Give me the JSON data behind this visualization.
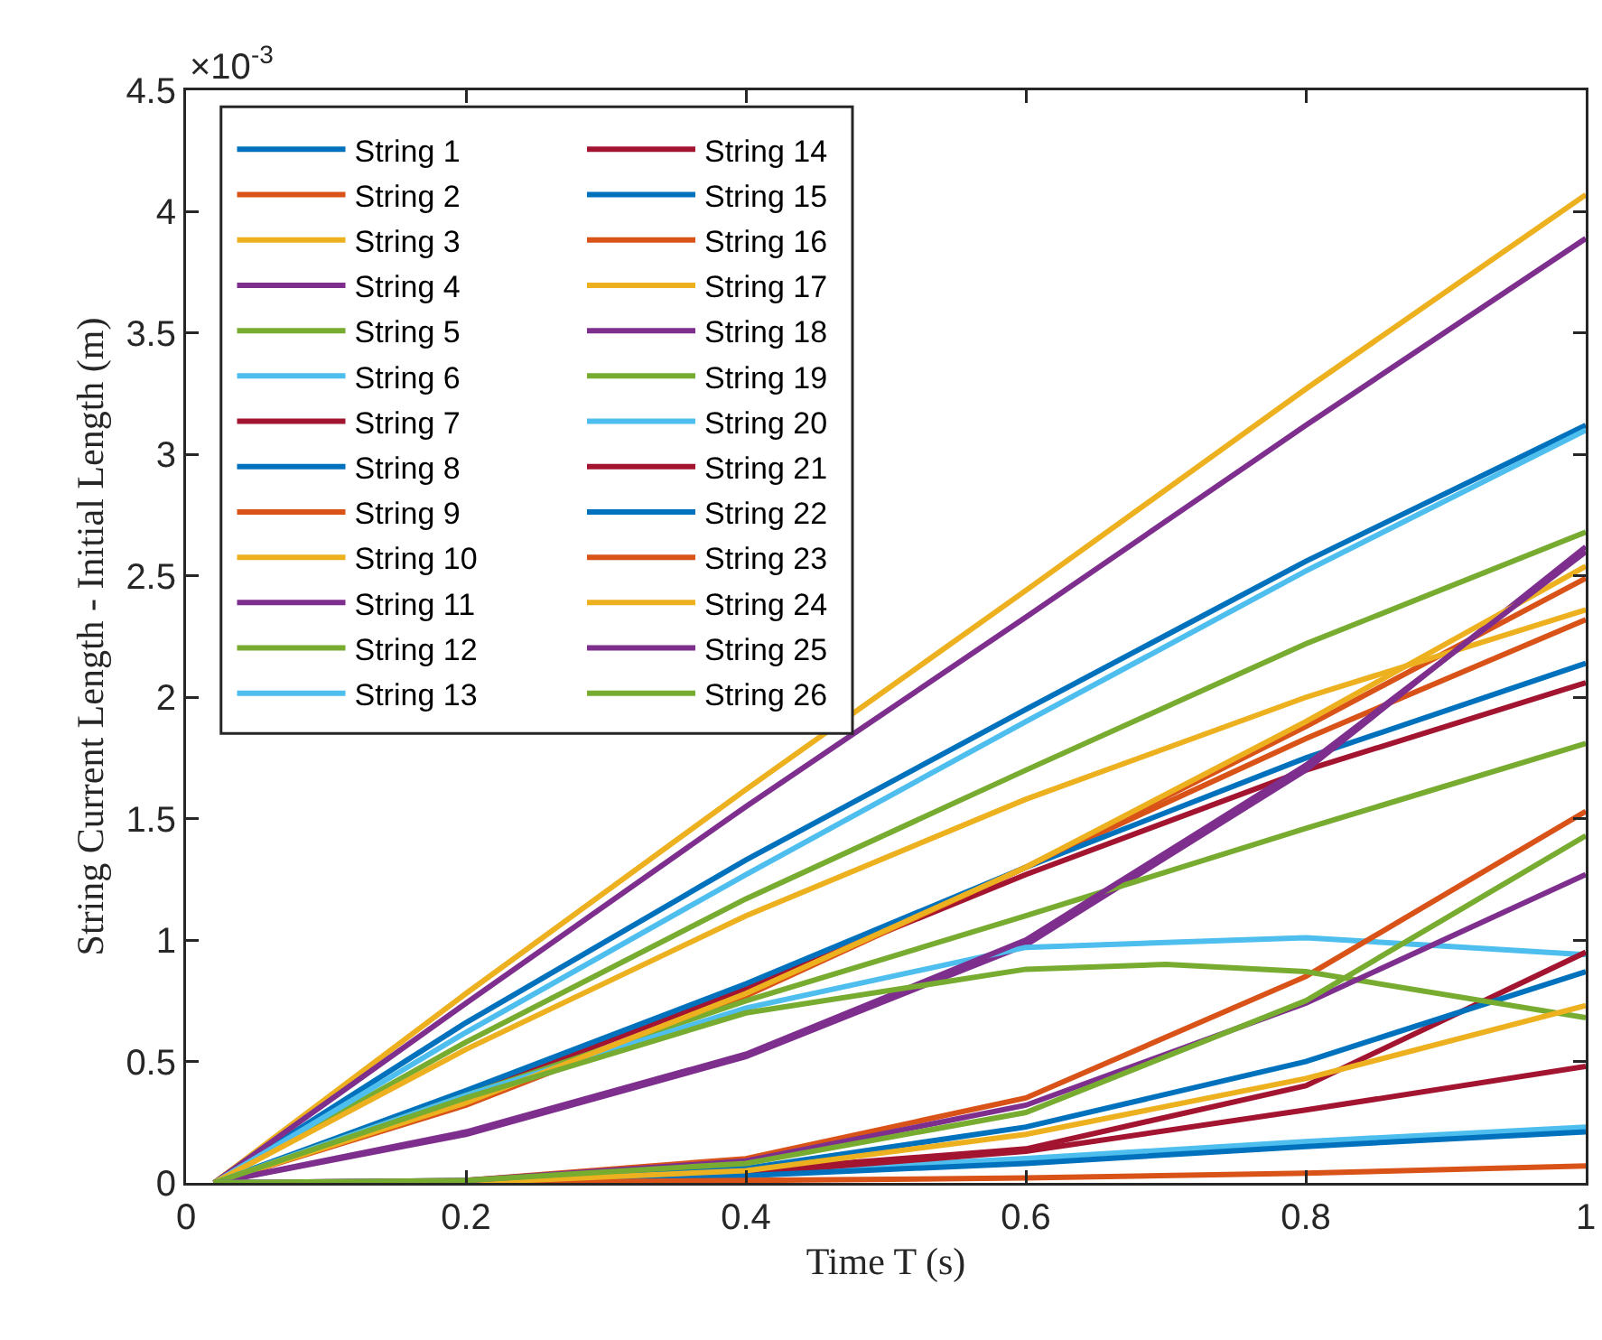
{
  "chart_data": {
    "type": "line",
    "xlabel": "Time T (s)",
    "ylabel": "String Current Length - Initial Length (m)",
    "annotations": [
      "×10$^{-3}$"
    ],
    "x": [
      0.02,
      0.2,
      0.4,
      0.6,
      0.8,
      1
    ],
    "xlim": [
      0,
      1
    ],
    "xticks": [
      0,
      0.2,
      0.4,
      0.6,
      0.8,
      1
    ],
    "ylim": [
      0,
      4.5
    ],
    "yticks": [
      0,
      0.5,
      1,
      1.5,
      2,
      2.5,
      3,
      3.5,
      4,
      4.5
    ],
    "grid": false,
    "legend": "top left",
    "marker": "none",
    "line_style": "solid",
    "series": [
      {
        "name": "String 1",
        "color": "#0072bd",
        "values": [
          0,
          0.66,
          1.33,
          1.95,
          2.56,
          3.12
        ]
      },
      {
        "name": "String 2",
        "color": "#d95319",
        "values": [
          0,
          0.33,
          0.78,
          1.3,
          1.83,
          2.32
        ]
      },
      {
        "name": "String 3",
        "color": "#edb120",
        "values": [
          0,
          0.78,
          1.62,
          2.44,
          3.27,
          4.07
        ]
      },
      {
        "name": "String 4",
        "color": "#7e2f8e",
        "values": [
          0,
          0.74,
          1.55,
          2.33,
          3.12,
          3.89
        ]
      },
      {
        "name": "String 5",
        "color": "#77ac30",
        "values": [
          0,
          0.58,
          1.17,
          1.7,
          2.22,
          2.68
        ]
      },
      {
        "name": "String 6",
        "color": "#4dbeee",
        "values": [
          0,
          0.62,
          1.27,
          1.9,
          2.52,
          3.1
        ]
      },
      {
        "name": "String 7",
        "color": "#a2142f",
        "values": [
          0,
          0.36,
          0.8,
          1.27,
          1.7,
          2.06
        ]
      },
      {
        "name": "String 8",
        "color": "#0072bd",
        "values": [
          0,
          0.38,
          0.82,
          1.3,
          1.75,
          2.14
        ]
      },
      {
        "name": "String 9",
        "color": "#d95319",
        "values": [
          0,
          0.32,
          0.77,
          1.3,
          1.88,
          2.49
        ]
      },
      {
        "name": "String 10",
        "color": "#edb120",
        "values": [
          0,
          0.55,
          1.1,
          1.58,
          2,
          2.36
        ]
      },
      {
        "name": "String 11",
        "color": "#7e2f8e",
        "values": [
          0,
          0.2,
          0.52,
          0.98,
          1.7,
          2.62
        ]
      },
      {
        "name": "String 12",
        "color": "#77ac30",
        "values": [
          0,
          0.36,
          0.75,
          1.1,
          1.46,
          1.81
        ]
      },
      {
        "name": "String 13",
        "color": "#4dbeee",
        "values": [
          0,
          0.36,
          0.72,
          0.97,
          1.01,
          0.94
        ]
      },
      {
        "name": "String 14",
        "color": "#a2142f",
        "values": [
          0,
          0,
          0.05,
          0.14,
          0.4,
          0.95
        ]
      },
      {
        "name": "String 15",
        "color": "#0072bd",
        "values": [
          0,
          0,
          0.06,
          0.23,
          0.5,
          0.87
        ]
      },
      {
        "name": "String 16",
        "color": "#d95319",
        "values": [
          0,
          0.01,
          0.1,
          0.35,
          0.85,
          1.53
        ]
      },
      {
        "name": "String 17",
        "color": "#edb120",
        "values": [
          0,
          0.33,
          0.78,
          1.3,
          1.9,
          2.54
        ]
      },
      {
        "name": "String 18",
        "color": "#7e2f8e",
        "values": [
          0,
          0.21,
          0.53,
          1,
          1.72,
          2.6
        ]
      },
      {
        "name": "String 19",
        "color": "#77ac30",
        "x": [
          0.02,
          0.2,
          0.4,
          0.6,
          0.7,
          0.8,
          1
        ],
        "values": [
          0,
          0.35,
          0.7,
          0.88,
          0.9,
          0.87,
          0.68
        ]
      },
      {
        "name": "String 20",
        "color": "#4dbeee",
        "values": [
          0,
          0.01,
          0.04,
          0.1,
          0.17,
          0.23
        ]
      },
      {
        "name": "String 21",
        "color": "#a2142f",
        "values": [
          0,
          0,
          0.04,
          0.13,
          0.3,
          0.48
        ]
      },
      {
        "name": "String 22",
        "color": "#0072bd",
        "values": [
          0,
          0,
          0.03,
          0.08,
          0.15,
          0.21
        ]
      },
      {
        "name": "String 23",
        "color": "#d95319",
        "values": [
          0,
          0,
          0.01,
          0.02,
          0.04,
          0.07
        ]
      },
      {
        "name": "String 24",
        "color": "#edb120",
        "values": [
          0,
          0,
          0.05,
          0.2,
          0.43,
          0.73
        ]
      },
      {
        "name": "String 25",
        "color": "#7e2f8e",
        "values": [
          0,
          0.01,
          0.09,
          0.32,
          0.74,
          1.27
        ]
      },
      {
        "name": "String 26",
        "color": "#77ac30",
        "values": [
          0,
          0.01,
          0.08,
          0.29,
          0.75,
          1.43
        ]
      }
    ]
  }
}
